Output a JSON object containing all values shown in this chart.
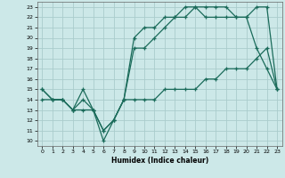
{
  "title": "",
  "xlabel": "Humidex (Indice chaleur)",
  "bg_color": "#cce8e8",
  "grid_color": "#aacccc",
  "line_color": "#1a6b5a",
  "xlim": [
    -0.5,
    23.5
  ],
  "ylim": [
    9.5,
    23.5
  ],
  "xticks": [
    0,
    1,
    2,
    3,
    4,
    5,
    6,
    7,
    8,
    9,
    10,
    11,
    12,
    13,
    14,
    15,
    16,
    17,
    18,
    19,
    20,
    21,
    22,
    23
  ],
  "yticks": [
    10,
    11,
    12,
    13,
    14,
    15,
    16,
    17,
    18,
    19,
    20,
    21,
    22,
    23
  ],
  "line1_x": [
    0,
    1,
    2,
    3,
    4,
    5,
    6,
    7,
    8,
    9,
    10,
    11,
    12,
    13,
    14,
    15,
    16,
    17,
    18,
    19,
    20,
    21,
    22,
    23
  ],
  "line1_y": [
    15,
    14,
    14,
    13,
    15,
    13,
    10,
    12,
    14,
    20,
    21,
    21,
    22,
    22,
    23,
    23,
    23,
    23,
    23,
    22,
    22,
    23,
    23,
    15
  ],
  "line2_x": [
    0,
    1,
    2,
    3,
    4,
    5,
    6,
    7,
    8,
    9,
    10,
    11,
    12,
    13,
    14,
    15,
    16,
    17,
    18,
    19,
    20,
    21,
    22,
    23
  ],
  "line2_y": [
    15,
    14,
    14,
    13,
    14,
    13,
    11,
    12,
    14,
    19,
    19,
    20,
    21,
    22,
    22,
    23,
    22,
    22,
    22,
    22,
    22,
    19,
    17,
    15
  ],
  "line3_x": [
    0,
    1,
    2,
    3,
    4,
    5,
    6,
    7,
    8,
    9,
    10,
    11,
    12,
    13,
    14,
    15,
    16,
    17,
    18,
    19,
    20,
    21,
    22,
    23
  ],
  "line3_y": [
    14,
    14,
    14,
    13,
    13,
    13,
    11,
    12,
    14,
    14,
    14,
    14,
    15,
    15,
    15,
    15,
    16,
    16,
    17,
    17,
    17,
    18,
    19,
    15
  ]
}
